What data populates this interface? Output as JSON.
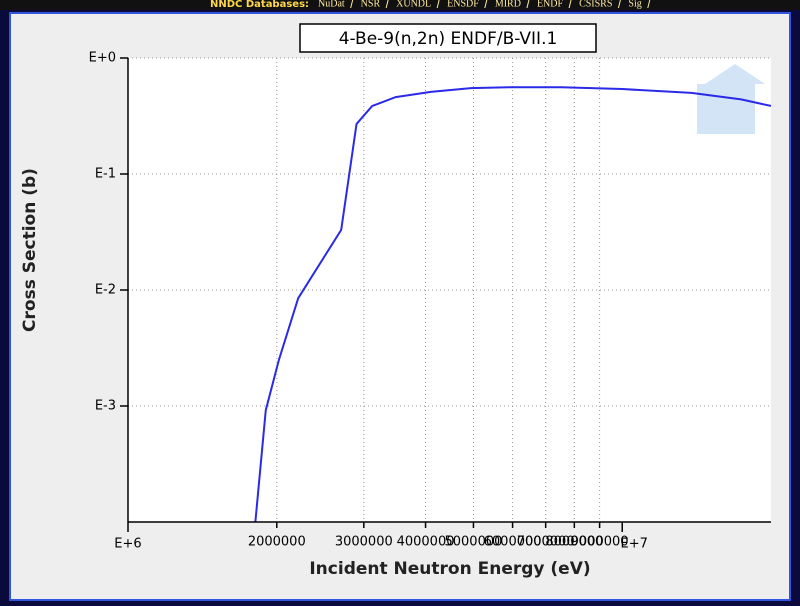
{
  "header": {
    "label": "NNDC Databases:",
    "links": [
      "NuDat",
      "NSR",
      "XUNDL",
      "ENSDF",
      "MIRD",
      "ENDF",
      "CSISRS",
      "Sig"
    ]
  },
  "chart_data": {
    "type": "line",
    "title": "4-Be-9(n,2n) ENDF/B-VII.1",
    "x_label": "Incident Neutron Energy (eV)",
    "y_label": "Cross Section (b)",
    "x": [
      1810000,
      1900000,
      2020000,
      2210000,
      2700000,
      2900000,
      3120000,
      3480000,
      4100000,
      4940000,
      5960000,
      7520000,
      10000000,
      13800000,
      17400000,
      20000000
    ],
    "values": [
      0.0001,
      0.00092,
      0.0025,
      0.0085,
      0.033,
      0.27,
      0.386,
      0.46,
      0.51,
      0.55,
      0.56,
      0.56,
      0.54,
      0.5,
      0.44,
      0.386
    ],
    "color": "#2a2ae8",
    "xlim": [
      1000000,
      20000000
    ],
    "ylim": [
      0.0001,
      1
    ],
    "xticks": [
      {
        "value": 1000000,
        "label": "E+6"
      },
      2000000,
      3000000,
      4000000,
      5000000,
      6000000,
      7000000,
      8000000,
      9000000,
      {
        "value": 10000000,
        "label": "E+7"
      }
    ],
    "yticks": [
      {
        "value": 1,
        "label": "E+0"
      },
      {
        "value": 0.1,
        "label": "E-1"
      },
      {
        "value": 0.01,
        "label": "E-2"
      },
      {
        "value": 0.001,
        "label": "E-3"
      }
    ],
    "log_x": true,
    "log_y": true,
    "grid": true
  }
}
